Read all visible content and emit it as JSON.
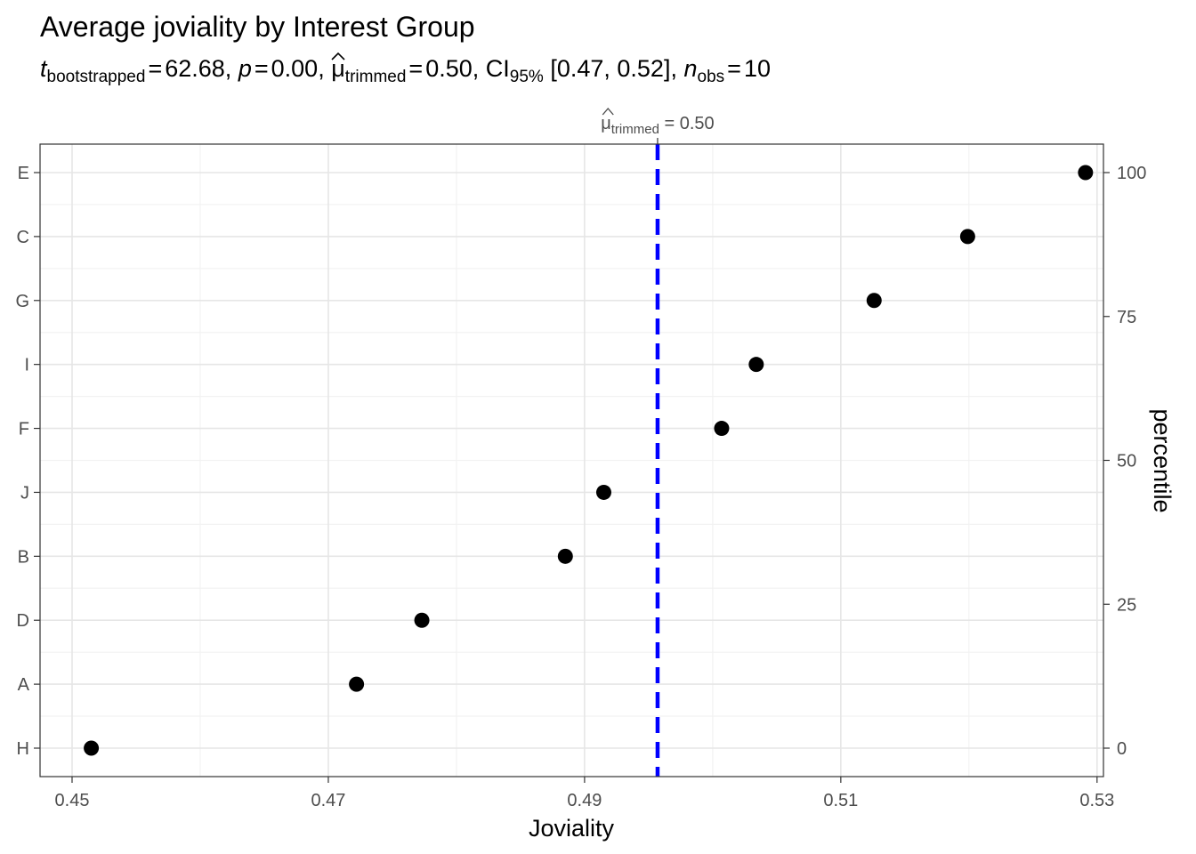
{
  "title": "Average joviality by Interest Group",
  "subtitle": {
    "t_label": "t",
    "t_sub": "bootstrapped",
    "t_value": "62.68",
    "p_label": "p",
    "p_value": "0.00",
    "mu_symbol": "μ",
    "mu_sub": "trimmed",
    "mu_value": "0.50",
    "ci_label": "CI",
    "ci_sub": "95%",
    "ci_value": "[0.47, 0.52]",
    "n_label": "n",
    "n_sub": "obs",
    "n_value": "10",
    "equals": "=",
    "sep": ","
  },
  "chart_data": {
    "type": "scatter",
    "title": "Average joviality by Interest Group",
    "xlabel": "Joviality",
    "ylabel": "",
    "secondary_ylabel": "percentile",
    "xlim": [
      0.4475,
      0.5305
    ],
    "x_ticks": [
      "0.45",
      "0.47",
      "0.49",
      "0.51",
      "0.53"
    ],
    "x_tick_values": [
      0.45,
      0.47,
      0.49,
      0.51,
      0.53
    ],
    "categories": [
      "H",
      "A",
      "D",
      "B",
      "J",
      "F",
      "I",
      "G",
      "C",
      "E"
    ],
    "values": [
      0.4515,
      0.4722,
      0.4773,
      0.4885,
      0.4915,
      0.5007,
      0.5034,
      0.5126,
      0.5199,
      0.5291
    ],
    "secondary_ylim": [
      0,
      100
    ],
    "secondary_y_ticks": [
      "0",
      "25",
      "50",
      "75",
      "100"
    ],
    "secondary_y_tick_values": [
      0,
      25,
      50,
      75,
      100
    ],
    "reference_line": {
      "value": 0.4957,
      "label_symbol": "μ",
      "label_sub": "trimmed",
      "label_value": "0.50",
      "color": "#0000ff",
      "style": "dashed"
    },
    "point_color": "#000000",
    "grid": true
  }
}
